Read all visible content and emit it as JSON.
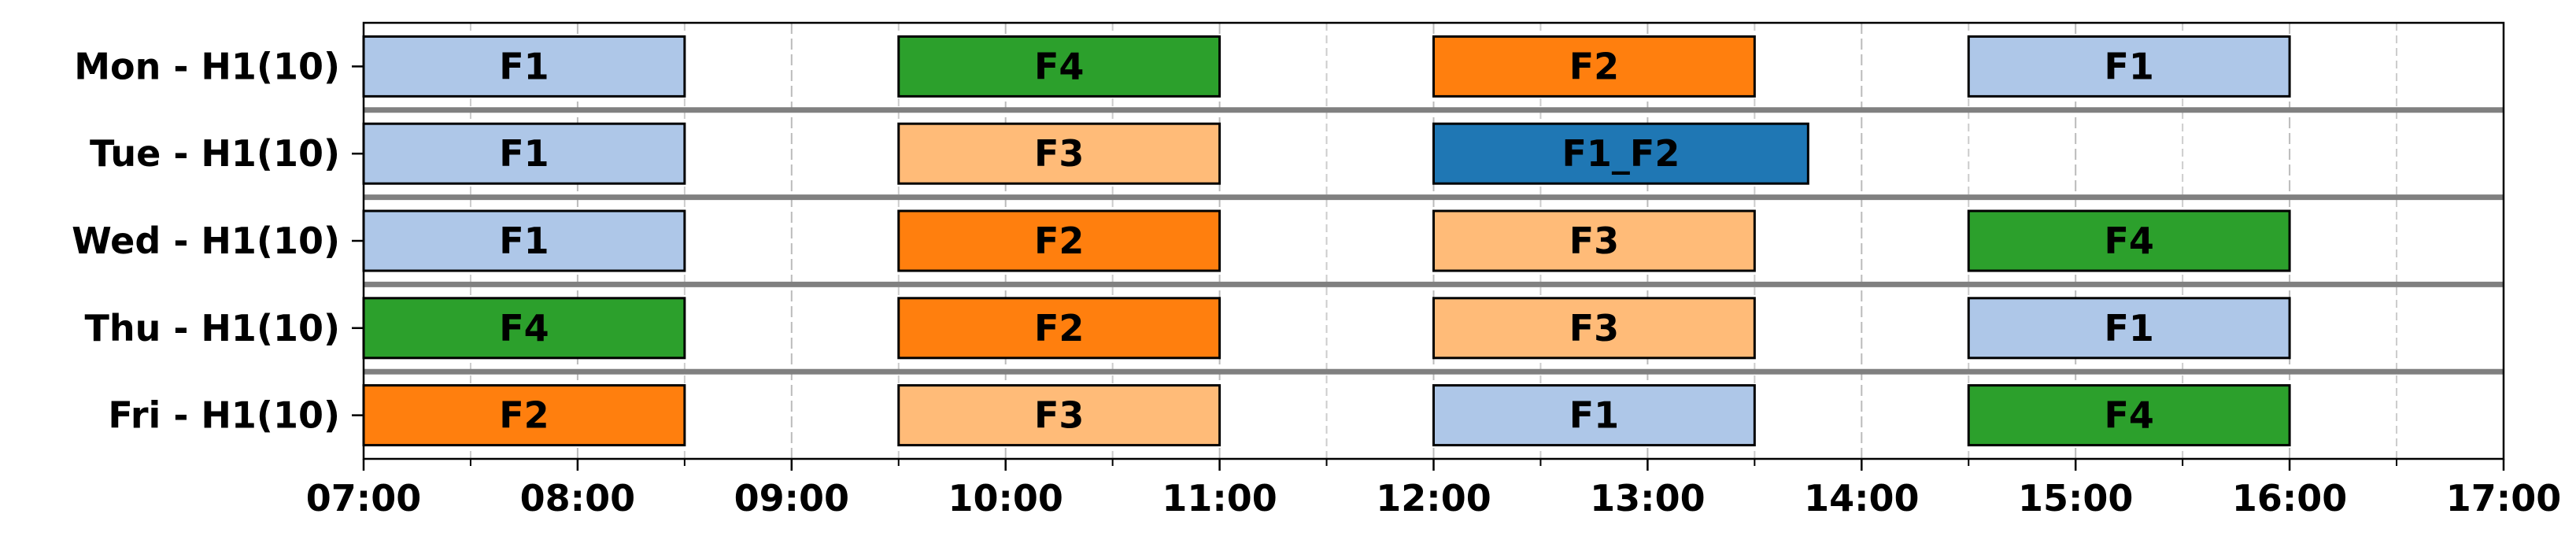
{
  "chart_data": {
    "type": "gantt",
    "rows": [
      {
        "name": "Mon - H1(10)",
        "tasks": [
          {
            "label": "F1",
            "start": 7,
            "end": 8.5,
            "color": "#aec7e8"
          },
          {
            "label": "F4",
            "start": 9.5,
            "end": 11,
            "color": "#2ca02c"
          },
          {
            "label": "F2",
            "start": 12,
            "end": 13.5,
            "color": "#ff7f0e"
          },
          {
            "label": "F1",
            "start": 14.5,
            "end": 16,
            "color": "#aec7e8"
          }
        ]
      },
      {
        "name": "Tue - H1(10)",
        "tasks": [
          {
            "label": "F1",
            "start": 7,
            "end": 8.5,
            "color": "#aec7e8"
          },
          {
            "label": "F3",
            "start": 9.5,
            "end": 11,
            "color": "#ffbb78"
          },
          {
            "label": "F1_F2",
            "start": 12,
            "end": 13.75,
            "color": "#1f77b4"
          }
        ]
      },
      {
        "name": "Wed - H1(10)",
        "tasks": [
          {
            "label": "F1",
            "start": 7,
            "end": 8.5,
            "color": "#aec7e8"
          },
          {
            "label": "F2",
            "start": 9.5,
            "end": 11,
            "color": "#ff7f0e"
          },
          {
            "label": "F3",
            "start": 12,
            "end": 13.5,
            "color": "#ffbb78"
          },
          {
            "label": "F4",
            "start": 14.5,
            "end": 16,
            "color": "#2ca02c"
          }
        ]
      },
      {
        "name": "Thu - H1(10)",
        "tasks": [
          {
            "label": "F4",
            "start": 7,
            "end": 8.5,
            "color": "#2ca02c"
          },
          {
            "label": "F2",
            "start": 9.5,
            "end": 11,
            "color": "#ff7f0e"
          },
          {
            "label": "F3",
            "start": 12,
            "end": 13.5,
            "color": "#ffbb78"
          },
          {
            "label": "F1",
            "start": 14.5,
            "end": 16,
            "color": "#aec7e8"
          }
        ]
      },
      {
        "name": "Fri - H1(10)",
        "tasks": [
          {
            "label": "F2",
            "start": 7,
            "end": 8.5,
            "color": "#ff7f0e"
          },
          {
            "label": "F3",
            "start": 9.5,
            "end": 11,
            "color": "#ffbb78"
          },
          {
            "label": "F1",
            "start": 12,
            "end": 13.5,
            "color": "#aec7e8"
          },
          {
            "label": "F4",
            "start": 14.5,
            "end": 16,
            "color": "#2ca02c"
          }
        ]
      }
    ],
    "xlim": [
      7,
      17
    ],
    "xticks": [
      {
        "value": 7,
        "label": "07:00"
      },
      {
        "value": 8,
        "label": "08:00"
      },
      {
        "value": 9,
        "label": "09:00"
      },
      {
        "value": 10,
        "label": "10:00"
      },
      {
        "value": 11,
        "label": "11:00"
      },
      {
        "value": 12,
        "label": "12:00"
      },
      {
        "value": 13,
        "label": "13:00"
      },
      {
        "value": 14,
        "label": "14:00"
      },
      {
        "value": 15,
        "label": "15:00"
      },
      {
        "value": 16,
        "label": "16:00"
      },
      {
        "value": 17,
        "label": "17:00"
      }
    ],
    "minor_xticks": [
      7.5,
      8.5,
      9.5,
      10.5,
      11.5,
      12.5,
      13.5,
      14.5,
      15.5,
      16.5
    ],
    "grid": true
  }
}
